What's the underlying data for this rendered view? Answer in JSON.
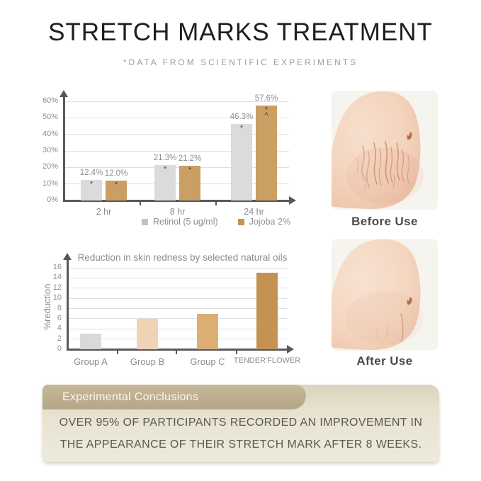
{
  "page": {
    "title": "STRETCH MARKS TREATMENT",
    "subtitle": "*DATA FROM SCIENTIFIC EXPERIMENTS"
  },
  "chart_data": [
    {
      "type": "bar",
      "title": "",
      "categories": [
        "2 hr",
        "8 hr",
        "24 hr"
      ],
      "series": [
        {
          "name": "Retinol (5 ug/ml)",
          "color": "#dbdbdb",
          "legend_color": "#c3c3c3",
          "marker_color": "#4a4a4a",
          "values": [
            12.4,
            21.3,
            46.3
          ],
          "labels": [
            "12.4%",
            "21.3%",
            "46.3%"
          ],
          "markers": [
            [
              "*"
            ],
            [
              "*"
            ],
            [
              "*"
            ]
          ]
        },
        {
          "name": "Jojoba 2%",
          "color": "#c99f63",
          "legend_color": "#c49457",
          "marker_color": "#53381f",
          "values": [
            12.0,
            21.2,
            57.6
          ],
          "labels": [
            "12.0%",
            "21.2%",
            "57.6%"
          ],
          "markers": [
            [
              "*"
            ],
            [
              "*"
            ],
            [
              "*",
              "^"
            ]
          ]
        }
      ],
      "ylim": [
        0,
        60
      ],
      "yticks": [
        "0%",
        "10%",
        "20%",
        "30%",
        "40%",
        "50%",
        "60%"
      ],
      "grid": true,
      "legend_position": "bottom"
    },
    {
      "type": "bar",
      "title": "Reduction in skin redness by selected natural oils",
      "ylabel": "%reduction",
      "categories": [
        "Group A",
        "Group B",
        "Group C",
        "TENDER'FLOWER"
      ],
      "values": [
        3,
        6,
        7,
        15
      ],
      "colors": [
        "#d9d9d9",
        "#eed4b4",
        "#dcae74",
        "#c49352"
      ],
      "ylim": [
        0,
        16
      ],
      "yticks": [
        0,
        2,
        4,
        6,
        8,
        10,
        12,
        14,
        16
      ],
      "grid": true
    }
  ],
  "images": {
    "before_label": "Before Use",
    "after_label": "After Use"
  },
  "conclusions": {
    "header": "Experimental Conclusions",
    "body_line1": "OVER 95% OF PARTICIPANTS RECORDED AN IMPROVEMENT IN",
    "body_line2": "THE APPEARANCE OF THEIR STRETCH MARK AFTER 8 WEEKS."
  },
  "colors": {
    "axis": "#57585a",
    "grid": "#dde0e2",
    "tick_text": "#8f8f8f",
    "tab": "#bcad8f",
    "panel": "#eae6d6",
    "accent_tan": "#c99f63"
  }
}
